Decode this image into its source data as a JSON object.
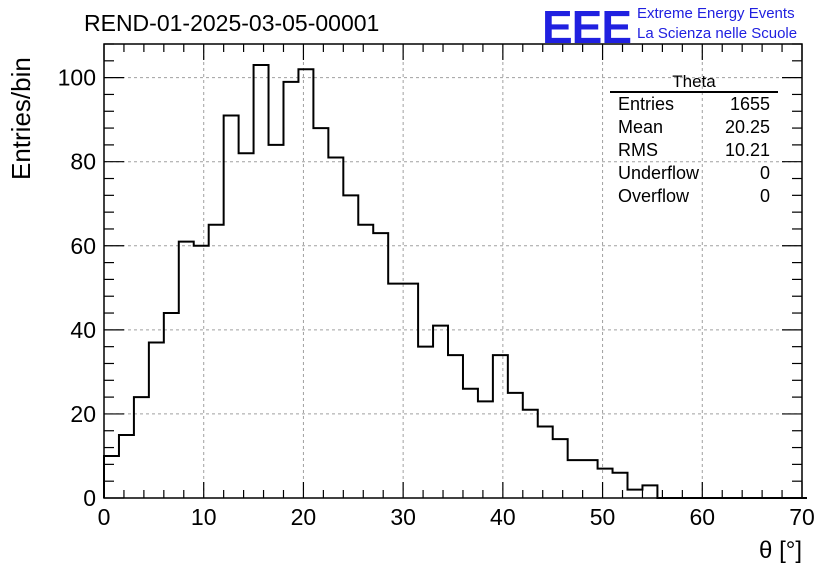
{
  "header": {
    "title": "REND-01-2025-03-05-00001"
  },
  "logo": {
    "mark": "EEE",
    "line1": "Extreme Energy Events",
    "line2": "La Scienza nelle Scuole"
  },
  "stats": {
    "title": "Theta",
    "rows": [
      {
        "label": "Entries",
        "value": "1655"
      },
      {
        "label": "Mean",
        "value": "20.25"
      },
      {
        "label": "RMS",
        "value": "10.21"
      },
      {
        "label": "Underflow",
        "value": "0"
      },
      {
        "label": "Overflow",
        "value": "0"
      }
    ]
  },
  "chart_data": {
    "type": "bar",
    "title": "REND-01-2025-03-05-00001",
    "xlabel": "θ [°]",
    "ylabel": "Entries/bin",
    "xlim": [
      0,
      70
    ],
    "ylim": [
      0,
      108
    ],
    "bin_width": 1.5,
    "x_ticks": [
      0,
      10,
      20,
      30,
      40,
      50,
      60,
      70
    ],
    "y_ticks": [
      0,
      20,
      40,
      60,
      80,
      100
    ],
    "grid": true,
    "values": [
      10,
      15,
      24,
      37,
      44,
      61,
      60,
      65,
      91,
      82,
      103,
      84,
      99,
      102,
      88,
      81,
      72,
      65,
      63,
      51,
      51,
      36,
      41,
      34,
      26,
      23,
      34,
      25,
      21,
      17,
      14,
      9,
      9,
      7,
      6,
      2,
      3,
      0,
      0,
      0,
      0,
      0,
      0,
      0,
      0,
      0,
      0
    ]
  }
}
